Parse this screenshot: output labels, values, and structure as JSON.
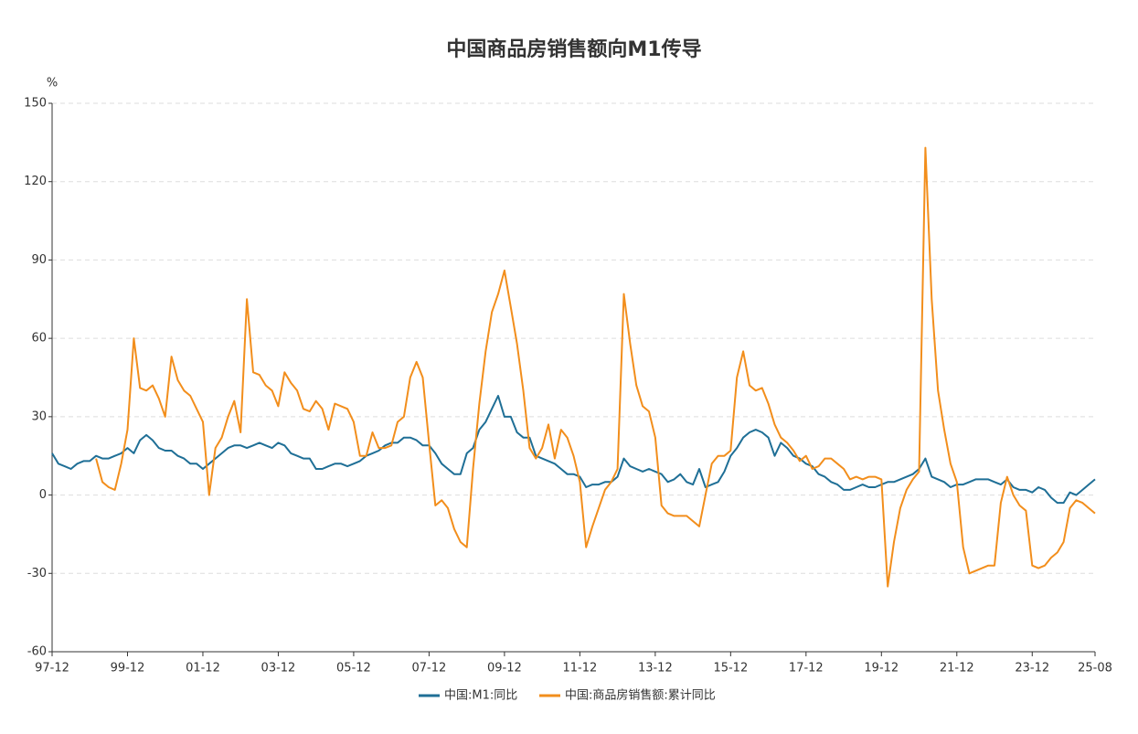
{
  "chart_data": {
    "type": "line",
    "title": "中国商品房销售额向M1传导",
    "y_unit": "%",
    "categories": [
      "97-12",
      null,
      null,
      null,
      null,
      null,
      null,
      null,
      null,
      null,
      null,
      null,
      "99-12",
      null,
      null,
      null,
      null,
      null,
      null,
      null,
      null,
      null,
      null,
      null,
      "01-12",
      null,
      null,
      null,
      null,
      null,
      null,
      null,
      null,
      null,
      null,
      null,
      "03-12",
      null,
      null,
      null,
      null,
      null,
      null,
      null,
      null,
      null,
      null,
      null,
      "05-12",
      null,
      null,
      null,
      null,
      null,
      null,
      null,
      null,
      null,
      null,
      null,
      "07-12",
      null,
      null,
      null,
      null,
      null,
      null,
      null,
      null,
      null,
      null,
      null,
      "09-12",
      null,
      null,
      null,
      null,
      null,
      null,
      null,
      null,
      null,
      null,
      null,
      "11-12",
      null,
      null,
      null,
      null,
      null,
      null,
      null,
      null,
      null,
      null,
      null,
      "13-12",
      null,
      null,
      null,
      null,
      null,
      null,
      null,
      null,
      null,
      null,
      null,
      "15-12",
      null,
      null,
      null,
      null,
      null,
      null,
      null,
      null,
      null,
      null,
      null,
      "17-12",
      null,
      null,
      null,
      null,
      null,
      null,
      null,
      null,
      null,
      null,
      null,
      "19-12",
      null,
      null,
      null,
      null,
      null,
      null,
      null,
      null,
      null,
      null,
      null,
      "21-12",
      null,
      null,
      null,
      null,
      null,
      null,
      null,
      null,
      null,
      null,
      null,
      "23-12",
      null,
      null,
      null,
      null,
      null,
      null,
      null,
      null,
      null,
      "25-08"
    ],
    "series": [
      {
        "name": "中国:M1:同比",
        "color": "#1f6f96",
        "values": [
          16,
          12,
          11,
          10,
          12,
          13,
          13,
          15,
          14,
          14,
          15,
          16,
          18,
          16,
          21,
          23,
          21,
          18,
          17,
          17,
          15,
          14,
          12,
          12,
          10,
          12,
          14,
          16,
          18,
          19,
          19,
          18,
          19,
          20,
          19,
          18,
          20,
          19,
          16,
          15,
          14,
          14,
          10,
          10,
          11,
          12,
          12,
          11,
          12,
          13,
          15,
          16,
          17,
          19,
          20,
          20,
          22,
          22,
          21,
          19,
          19,
          16,
          12,
          10,
          8,
          8,
          16,
          18,
          25,
          28,
          33,
          38,
          30,
          30,
          24,
          22,
          22,
          15,
          14,
          13,
          12,
          10,
          8,
          8,
          7,
          3,
          4,
          4,
          5,
          5,
          7,
          14,
          11,
          10,
          9,
          10,
          9,
          8,
          5,
          6,
          8,
          5,
          4,
          10,
          3,
          4,
          5,
          9,
          15,
          18,
          22,
          24,
          25,
          24,
          22,
          15,
          20,
          18,
          15,
          14,
          12,
          11,
          8,
          7,
          5,
          4,
          2,
          2,
          3,
          4,
          3,
          3,
          4,
          5,
          5,
          6,
          7,
          8,
          10,
          14,
          7,
          6,
          5,
          3,
          4,
          4,
          5,
          6,
          6,
          6,
          5,
          4,
          6,
          3,
          2,
          2,
          1,
          3,
          2,
          -1,
          -3,
          -3,
          1,
          0,
          2,
          4,
          6
        ]
      },
      {
        "name": "中国:商品房销售额:累计同比",
        "color": "#f28e1c",
        "values": [
          null,
          null,
          null,
          null,
          null,
          null,
          null,
          14,
          5,
          3,
          2,
          12,
          25,
          60,
          41,
          40,
          42,
          37,
          30,
          53,
          44,
          40,
          38,
          33,
          28,
          0,
          18,
          22,
          30,
          36,
          24,
          75,
          47,
          46,
          42,
          40,
          34,
          47,
          43,
          40,
          33,
          32,
          36,
          33,
          25,
          35,
          34,
          33,
          28,
          15,
          15,
          24,
          18,
          18,
          19,
          28,
          30,
          45,
          51,
          45,
          20,
          -4,
          -2,
          -5,
          -13,
          -18,
          -20,
          10,
          35,
          55,
          70,
          77,
          86,
          72,
          58,
          40,
          18,
          14,
          18,
          27,
          14,
          25,
          22,
          15,
          5,
          -20,
          -12,
          -5,
          2,
          5,
          10,
          77,
          58,
          42,
          34,
          32,
          22,
          -4,
          -7,
          -8,
          -8,
          -8,
          -10,
          -12,
          0,
          12,
          15,
          15,
          17,
          45,
          55,
          42,
          40,
          41,
          35,
          27,
          22,
          20,
          17,
          13,
          15,
          10,
          11,
          14,
          14,
          12,
          10,
          6,
          7,
          6,
          7,
          7,
          6,
          -35,
          -18,
          -5,
          2,
          6,
          9,
          133,
          75,
          40,
          25,
          12,
          5,
          -20,
          -30,
          -29,
          -28,
          -27,
          -27,
          -3,
          7,
          0,
          -4,
          -6,
          -27,
          -28,
          -27,
          -24,
          -22,
          -18,
          -5,
          -2,
          -3,
          -5,
          -7
        ]
      }
    ],
    "ylim": [
      -60,
      150
    ],
    "yticks": [
      -60,
      -30,
      0,
      30,
      60,
      90,
      120,
      150
    ],
    "grid": true
  }
}
